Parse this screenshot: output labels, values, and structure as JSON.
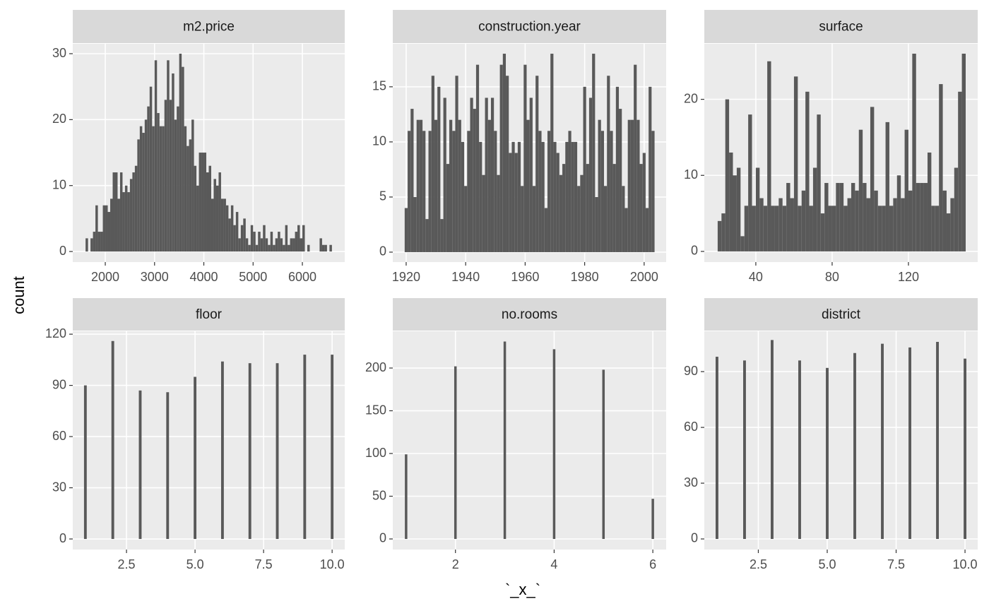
{
  "xlabel": "`_x_`",
  "ylabel": "count",
  "chart_data": [
    {
      "type": "histogram",
      "title": "m2.price",
      "color": "#595959",
      "grid": true,
      "bins": [
        1600,
        1650,
        1700,
        1750,
        1800,
        1850,
        1900,
        1950,
        2000,
        2050,
        2100,
        2150,
        2200,
        2250,
        2300,
        2350,
        2400,
        2450,
        2500,
        2550,
        2600,
        2650,
        2700,
        2750,
        2800,
        2850,
        2900,
        2950,
        3000,
        3050,
        3100,
        3150,
        3200,
        3250,
        3300,
        3350,
        3400,
        3450,
        3500,
        3550,
        3600,
        3650,
        3700,
        3750,
        3800,
        3850,
        3900,
        3950,
        4000,
        4050,
        4100,
        4150,
        4200,
        4250,
        4300,
        4350,
        4400,
        4450,
        4500,
        4550,
        4600,
        4650,
        4700,
        4750,
        4800,
        4850,
        4900,
        4950,
        5000,
        5050,
        5100,
        5150,
        5200,
        5250,
        5300,
        5350,
        5400,
        5450,
        5500,
        5550,
        5600,
        5650,
        5700,
        5750,
        5800,
        5850,
        5900,
        5950,
        6000,
        6050,
        6100,
        6150,
        6200,
        6250,
        6300,
        6350,
        6400,
        6450,
        6500,
        6550,
        6600
      ],
      "values": [
        2,
        0,
        2,
        3,
        7,
        3,
        3,
        7,
        7,
        6,
        8,
        12,
        12,
        8,
        12,
        9,
        10,
        9,
        11,
        12,
        13,
        17,
        19,
        18,
        20,
        22,
        25,
        19,
        29,
        21,
        19,
        19,
        23,
        29,
        23,
        27,
        20,
        22,
        30,
        28,
        19,
        16,
        17,
        20,
        13,
        10,
        15,
        15,
        15,
        12,
        13,
        8,
        11,
        10,
        12,
        8,
        8,
        7,
        5,
        7,
        4,
        6,
        2,
        4,
        5,
        2,
        1,
        4,
        3,
        1,
        3,
        2,
        4,
        2,
        1,
        3,
        1,
        2,
        3,
        2,
        1,
        4,
        1,
        2,
        2,
        3,
        4,
        2,
        4,
        0,
        1,
        0,
        0,
        0,
        0,
        2,
        1,
        1,
        0,
        1
      ],
      "xlim": [
        1340,
        6860
      ],
      "xticks": [
        2000,
        3000,
        4000,
        5000,
        6000
      ],
      "ylim": [
        -1.6,
        31.5
      ],
      "yticks": [
        0,
        10,
        20,
        30
      ]
    },
    {
      "type": "histogram",
      "title": "construction.year",
      "color": "#595959",
      "grid": true,
      "bins": [
        1919.5,
        1920.5,
        1921.5,
        1922.5,
        1923.5,
        1924.5,
        1925.5,
        1926.5,
        1927.5,
        1928.5,
        1929.5,
        1930.5,
        1931.5,
        1932.5,
        1933.5,
        1934.5,
        1935.5,
        1936.5,
        1937.5,
        1938.5,
        1939.5,
        1940.5,
        1941.5,
        1942.5,
        1943.5,
        1944.5,
        1945.5,
        1946.5,
        1947.5,
        1948.5,
        1949.5,
        1950.5,
        1951.5,
        1952.5,
        1953.5,
        1954.5,
        1955.5,
        1956.5,
        1957.5,
        1958.5,
        1959.5,
        1960.5,
        1961.5,
        1962.5,
        1963.5,
        1964.5,
        1965.5,
        1966.5,
        1967.5,
        1968.5,
        1969.5,
        1970.5,
        1971.5,
        1972.5,
        1973.5,
        1974.5,
        1975.5,
        1976.5,
        1977.5,
        1978.5,
        1979.5,
        1980.5,
        1981.5,
        1982.5,
        1983.5,
        1984.5,
        1985.5,
        1986.5,
        1987.5,
        1988.5,
        1989.5,
        1990.5,
        1991.5,
        1992.5,
        1993.5,
        1994.5,
        1995.5,
        1996.5,
        1997.5,
        1998.5,
        1999.5,
        2000.5,
        2001.5,
        2002.5,
        2003.5
      ],
      "values": [
        4,
        11,
        13,
        5,
        12,
        12,
        11,
        3,
        11,
        16,
        12,
        15,
        3,
        14,
        8,
        12,
        11,
        16,
        12,
        10,
        6,
        11,
        14,
        13,
        17,
        10,
        7,
        14,
        12,
        14,
        11,
        7,
        17,
        18,
        16,
        9,
        10,
        9,
        10,
        6,
        17,
        12,
        14,
        6,
        16,
        11,
        10,
        4,
        11,
        18,
        10,
        9,
        7,
        8,
        10,
        11,
        10,
        10,
        6,
        7,
        15,
        8,
        14,
        18,
        5,
        12,
        11,
        6,
        16,
        11,
        8,
        15,
        13,
        6,
        4,
        12,
        12,
        17,
        12,
        8,
        9,
        4,
        15,
        11
      ],
      "xlim": [
        1915.5,
        2007.4
      ],
      "xticks": [
        1920,
        1940,
        1960,
        1980,
        2000
      ],
      "ylim": [
        -0.9,
        18.9
      ],
      "yticks": [
        0,
        5,
        10,
        15
      ]
    },
    {
      "type": "histogram",
      "title": "surface",
      "color": "#595959",
      "grid": true,
      "bins": [
        20,
        22,
        24,
        26,
        28,
        30,
        32,
        34,
        36,
        38,
        40,
        42,
        44,
        46,
        48,
        50,
        52,
        54,
        56,
        58,
        60,
        62,
        64,
        66,
        68,
        70,
        72,
        74,
        76,
        78,
        80,
        82,
        84,
        86,
        88,
        90,
        92,
        94,
        96,
        98,
        100,
        102,
        104,
        106,
        108,
        110,
        112,
        114,
        116,
        118,
        120,
        122,
        124,
        126,
        128,
        130,
        132,
        134,
        136,
        138,
        140,
        142,
        144,
        146,
        148,
        150
      ],
      "values": [
        4,
        5,
        20,
        13,
        10,
        11,
        2,
        6,
        18,
        6,
        11,
        7,
        6,
        25,
        6,
        6,
        7,
        6,
        9,
        7,
        23,
        6,
        8,
        21,
        6,
        11,
        18,
        5,
        9,
        6,
        6,
        9,
        9,
        6,
        7,
        9,
        8,
        16,
        9,
        7,
        19,
        8,
        6,
        6,
        17,
        6,
        7,
        10,
        7,
        16,
        8,
        26,
        9,
        9,
        9,
        13,
        6,
        6,
        22,
        8,
        5,
        7,
        11,
        21,
        26
      ],
      "xlim": [
        13,
        156.3
      ],
      "xticks": [
        40,
        80,
        120
      ],
      "ylim": [
        -1.4,
        27.3
      ],
      "yticks": [
        0,
        10,
        20
      ]
    },
    {
      "type": "histogram",
      "title": "floor",
      "color": "#595959",
      "grid": true,
      "bins": [
        0.95,
        1.05,
        1.95,
        2.05,
        2.95,
        3.05,
        3.95,
        4.05,
        4.95,
        5.05,
        5.95,
        6.05,
        6.95,
        7.05,
        7.95,
        8.05,
        8.95,
        9.05,
        9.95,
        10.05
      ],
      "values": [
        90,
        0,
        116,
        0,
        87,
        0,
        86,
        0,
        95,
        0,
        104,
        0,
        103,
        0,
        103,
        0,
        108,
        0,
        108
      ],
      "xlim": [
        0.54,
        10.46
      ],
      "xticks": [
        2.5,
        {
          "value": 5,
          "label": "5.0"
        },
        7.5,
        {
          "value": 10,
          "label": "10.0"
        }
      ],
      "ylim": [
        -6.2,
        121.7
      ],
      "yticks": [
        0,
        30,
        60,
        90,
        120
      ]
    },
    {
      "type": "histogram",
      "title": "no.rooms",
      "color": "#595959",
      "grid": true,
      "bins": [
        0.975,
        1.025,
        1.975,
        2.025,
        2.975,
        3.025,
        3.975,
        4.025,
        4.975,
        5.025,
        5.975,
        6.025
      ],
      "values": [
        99,
        0,
        202,
        0,
        231,
        0,
        222,
        0,
        198,
        0,
        47
      ],
      "xlim": [
        0.73,
        6.27
      ],
      "xticks": [
        2,
        4,
        6
      ],
      "ylim": [
        -12.4,
        243
      ],
      "yticks": [
        0,
        50,
        100,
        150,
        200
      ]
    },
    {
      "type": "histogram",
      "title": "district",
      "color": "#595959",
      "grid": true,
      "bins": [
        0.95,
        1.05,
        1.95,
        2.05,
        2.95,
        3.05,
        3.95,
        4.05,
        4.95,
        5.05,
        5.95,
        6.05,
        6.95,
        7.05,
        7.95,
        8.05,
        8.95,
        9.05,
        9.95,
        10.05
      ],
      "values": [
        98,
        0,
        96,
        0,
        107,
        0,
        96,
        0,
        92,
        0,
        100,
        0,
        105,
        0,
        103,
        0,
        106,
        0,
        97
      ],
      "xlim": [
        0.54,
        10.46
      ],
      "xticks": [
        2.5,
        {
          "value": 5,
          "label": "5.0"
        },
        7.5,
        {
          "value": 10,
          "label": "10.0"
        }
      ],
      "ylim": [
        -5.7,
        111.7
      ],
      "yticks": [
        0,
        30,
        60,
        90
      ]
    }
  ]
}
